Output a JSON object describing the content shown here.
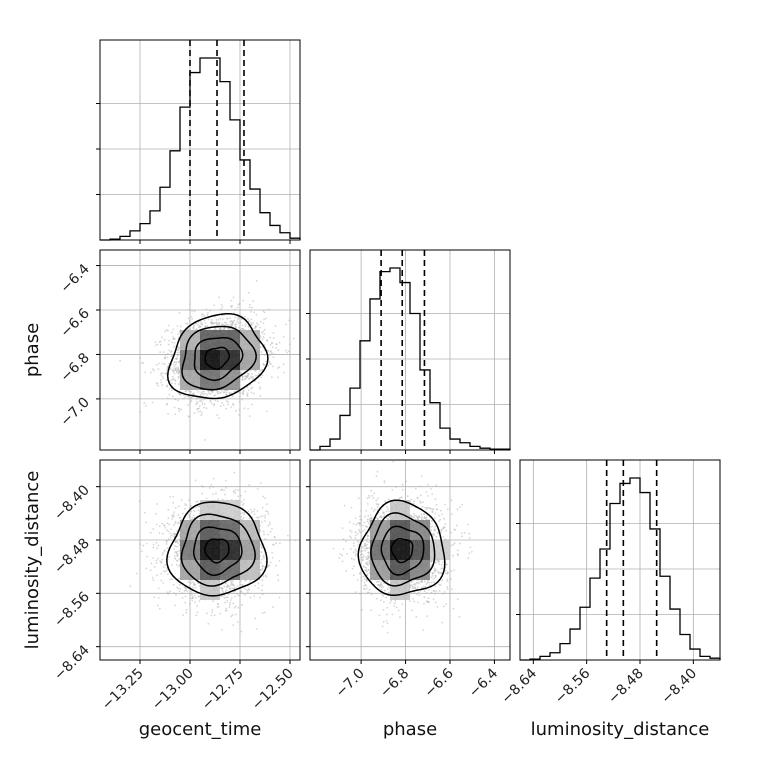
{
  "colors": {
    "line": "#000000",
    "grid": "#b0b0b0",
    "scatter": "#b5b5b5",
    "background": "#ffffff"
  },
  "chart_data": {
    "type": "corner",
    "grid": true,
    "parameters": [
      "geocent_time",
      "phase",
      "luminosity_distance"
    ],
    "ranges": [
      [
        -13.45,
        -12.45
      ],
      [
        -7.23,
        -6.33
      ],
      [
        -8.66,
        -8.36
      ]
    ],
    "ticks": [
      [
        -13.25,
        -13.0,
        -12.75,
        -12.5
      ],
      [
        -7.0,
        -6.8,
        -6.6,
        -6.4
      ],
      [
        -8.64,
        -8.56,
        -8.48,
        -8.4
      ]
    ],
    "tick_labels": [
      [
        "−13.25",
        "−13.00",
        "−12.75",
        "−12.50"
      ],
      [
        "−7.0",
        "−6.8",
        "−6.6",
        "−6.4"
      ],
      [
        "−8.64",
        "−8.56",
        "−8.48",
        "−8.40"
      ]
    ],
    "quantiles": [
      [
        -13.0,
        -12.865,
        -12.73
      ],
      [
        -6.91,
        -6.815,
        -6.715
      ],
      [
        -8.53,
        -8.505,
        -8.455
      ]
    ],
    "histograms": [
      [
        0,
        0.005,
        0.02,
        0.05,
        0.09,
        0.16,
        0.29,
        0.49,
        0.73,
        0.92,
        1.0,
        1.0,
        0.87,
        0.66,
        0.44,
        0.28,
        0.15,
        0.08,
        0.04,
        0.01
      ],
      [
        0,
        0.02,
        0.06,
        0.19,
        0.34,
        0.6,
        0.83,
        0.98,
        1.0,
        0.92,
        0.75,
        0.44,
        0.26,
        0.12,
        0.06,
        0.04,
        0.02,
        0.01,
        0.005,
        0.005
      ],
      [
        0,
        0.005,
        0.02,
        0.04,
        0.09,
        0.17,
        0.29,
        0.45,
        0.61,
        0.86,
        0.97,
        1.0,
        0.92,
        0.72,
        0.46,
        0.28,
        0.14,
        0.06,
        0.02,
        0.01
      ]
    ],
    "gaussian": {
      "mean": [
        -12.865,
        -6.815,
        -8.495
      ],
      "sd": [
        0.12,
        0.095,
        0.035
      ],
      "corr": {
        "0-1": 0.15,
        "0-2": 0.02,
        "1-2": 0.0
      }
    },
    "scatter_points": 2500
  }
}
